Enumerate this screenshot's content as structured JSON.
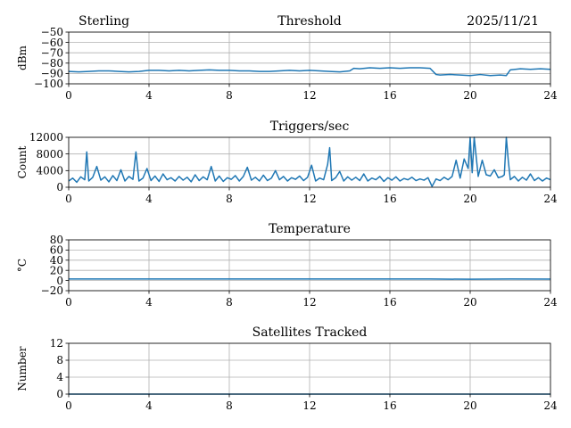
{
  "header": {
    "station": "Sterling",
    "date": "2025/11/21"
  },
  "chart_data": [
    {
      "type": "line",
      "title": "Threshold",
      "xlabel": "",
      "ylabel": "dBm",
      "xlim": [
        0,
        24
      ],
      "ylim": [
        -100,
        -50
      ],
      "xticks": [
        "0",
        "4",
        "8",
        "12",
        "16",
        "20",
        "24"
      ],
      "yticks": [
        "−50",
        "−60",
        "−70",
        "−80",
        "−90",
        "−100"
      ],
      "grid": true,
      "series": [
        {
          "name": "Threshold",
          "color": "#1f77b4",
          "x": [
            0,
            0.5,
            1.0,
            1.5,
            2.0,
            2.5,
            3.0,
            3.5,
            4.0,
            4.5,
            5.0,
            5.5,
            6.0,
            6.5,
            7.0,
            7.5,
            8.0,
            8.5,
            9.0,
            9.5,
            10.0,
            10.5,
            11.0,
            11.5,
            12.0,
            12.5,
            13.0,
            13.5,
            14.0,
            14.2,
            14.5,
            15.0,
            15.5,
            16.0,
            16.5,
            17.0,
            17.5,
            18.0,
            18.3,
            18.5,
            19.0,
            19.5,
            20.0,
            20.5,
            21.0,
            21.5,
            21.8,
            22.0,
            22.5,
            23.0,
            23.5,
            24.0
          ],
          "y": [
            -88,
            -88.5,
            -88,
            -87.5,
            -87.5,
            -88,
            -88.5,
            -88,
            -87,
            -87,
            -87.5,
            -87,
            -87.5,
            -87,
            -86.5,
            -87,
            -87,
            -87.5,
            -87.5,
            -88,
            -88,
            -87.5,
            -87,
            -87.5,
            -87,
            -87.5,
            -88,
            -88.5,
            -87.5,
            -85,
            -85.5,
            -84.5,
            -85,
            -84.5,
            -85,
            -84.5,
            -84.5,
            -85,
            -91,
            -91.5,
            -91,
            -91.5,
            -92,
            -91,
            -92,
            -91.5,
            -92,
            -86.5,
            -85.5,
            -86,
            -85.5,
            -86
          ]
        }
      ]
    },
    {
      "type": "line",
      "title": "Triggers/sec",
      "xlabel": "",
      "ylabel": "Count",
      "xlim": [
        0,
        24
      ],
      "ylim": [
        0,
        12000
      ],
      "xticks": [
        "0",
        "4",
        "8",
        "12",
        "16",
        "20",
        "24"
      ],
      "yticks": [
        "0",
        "4000",
        "8000",
        "12000"
      ],
      "grid": true,
      "series": [
        {
          "name": "Triggers/sec",
          "color": "#1f77b4",
          "x": [
            0,
            0.2,
            0.4,
            0.6,
            0.8,
            0.9,
            1.0,
            1.2,
            1.4,
            1.6,
            1.8,
            2.0,
            2.2,
            2.4,
            2.6,
            2.8,
            3.0,
            3.2,
            3.35,
            3.5,
            3.7,
            3.9,
            4.1,
            4.3,
            4.5,
            4.7,
            4.9,
            5.1,
            5.3,
            5.5,
            5.7,
            5.9,
            6.1,
            6.3,
            6.5,
            6.7,
            6.9,
            7.1,
            7.3,
            7.5,
            7.7,
            7.9,
            8.1,
            8.3,
            8.5,
            8.7,
            8.9,
            9.1,
            9.3,
            9.5,
            9.7,
            9.9,
            10.1,
            10.3,
            10.5,
            10.7,
            10.9,
            11.1,
            11.3,
            11.5,
            11.7,
            11.9,
            12.1,
            12.3,
            12.5,
            12.7,
            12.9,
            13.0,
            13.1,
            13.3,
            13.5,
            13.7,
            13.9,
            14.1,
            14.3,
            14.5,
            14.7,
            14.9,
            15.1,
            15.3,
            15.5,
            15.7,
            15.9,
            16.1,
            16.3,
            16.5,
            16.7,
            16.9,
            17.1,
            17.3,
            17.5,
            17.7,
            17.9,
            18.1,
            18.3,
            18.5,
            18.7,
            18.9,
            19.1,
            19.3,
            19.5,
            19.7,
            19.9,
            20.0,
            20.1,
            20.2,
            20.4,
            20.6,
            20.8,
            21.0,
            21.2,
            21.4,
            21.6,
            21.7,
            21.8,
            21.9,
            22.0,
            22.2,
            22.4,
            22.6,
            22.8,
            23.0,
            23.2,
            23.4,
            23.6,
            23.8,
            24.0
          ],
          "y": [
            1500,
            2200,
            1200,
            2500,
            1800,
            8500,
            1500,
            2400,
            5000,
            1700,
            2500,
            1300,
            2800,
            1600,
            4200,
            1500,
            2600,
            1900,
            8500,
            1500,
            2200,
            4500,
            1600,
            2700,
            1400,
            3200,
            1800,
            2300,
            1500,
            2600,
            1700,
            2400,
            1300,
            3000,
            1600,
            2500,
            1800,
            5000,
            1500,
            2700,
            1400,
            2300,
            1900,
            2800,
            1500,
            2600,
            4800,
            1700,
            2400,
            1500,
            2900,
            1600,
            2200,
            4000,
            1800,
            2600,
            1500,
            2300,
            1900,
            2700,
            1600,
            2400,
            5300,
            1500,
            2200,
            1800,
            5500,
            9500,
            1600,
            2300,
            3800,
            1500,
            2500,
            1700,
            2400,
            1600,
            3200,
            1500,
            2200,
            1800,
            2600,
            1400,
            2300,
            1700,
            2500,
            1500,
            2100,
            1800,
            2400,
            1600,
            2000,
            1700,
            2300,
            200,
            2000,
            1600,
            2400,
            1800,
            2600,
            6500,
            2200,
            6800,
            4500,
            12000,
            3500,
            12000,
            2600,
            6500,
            3000,
            2700,
            4200,
            2300,
            2600,
            3000,
            12000,
            6300,
            1800,
            2600,
            1500,
            2400,
            1700,
            3200,
            1600,
            2300,
            1500,
            2200,
            1800
          ]
        }
      ]
    },
    {
      "type": "line",
      "title": "Temperature",
      "xlabel": "",
      "ylabel": "°C",
      "xlim": [
        0,
        24
      ],
      "ylim": [
        -20,
        80
      ],
      "xticks": [
        "0",
        "4",
        "8",
        "12",
        "16",
        "20",
        "24"
      ],
      "yticks": [
        "−20",
        "0",
        "20",
        "40",
        "60",
        "80"
      ],
      "grid": true,
      "series": [
        {
          "name": "Temperature",
          "color": "#1f77b4",
          "x": [
            0,
            4,
            8,
            10,
            12,
            14,
            16,
            18,
            20,
            22,
            24
          ],
          "y": [
            3,
            3,
            3,
            3,
            3,
            3,
            3,
            3,
            2.5,
            3,
            2.8
          ]
        }
      ]
    },
    {
      "type": "line",
      "title": "Satellites Tracked",
      "xlabel": "",
      "ylabel": "Number",
      "xlim": [
        0,
        24
      ],
      "ylim": [
        0,
        12
      ],
      "xticks": [
        "0",
        "4",
        "8",
        "12",
        "16",
        "20",
        "24"
      ],
      "yticks": [
        "0",
        "4",
        "8",
        "12"
      ],
      "grid": true,
      "series": [
        {
          "name": "Satellites Tracked",
          "color": "#1f77b4",
          "x": [
            0,
            24
          ],
          "y": [
            0,
            0
          ]
        }
      ]
    }
  ]
}
